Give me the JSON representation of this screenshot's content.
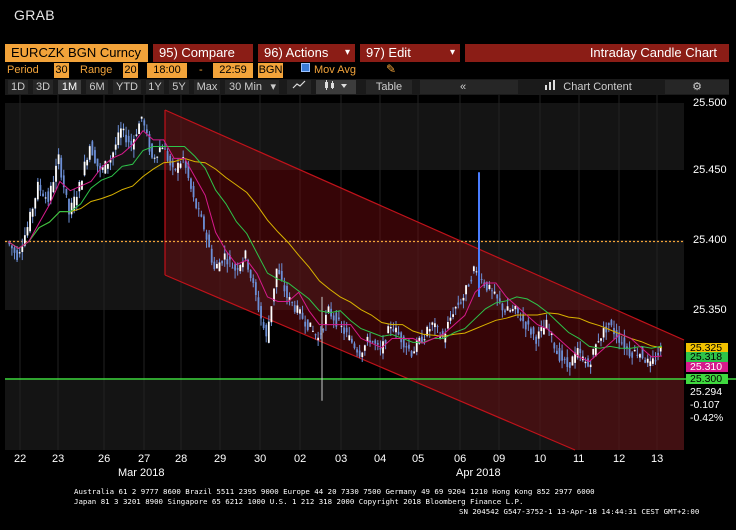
{
  "window": {
    "title": "GRAB"
  },
  "toolbar": {
    "ticker": "EURCZK BGN Curncy",
    "compare": "95) Compare",
    "actions": "96) Actions",
    "edit": "97) Edit",
    "chart_title": "Intraday Candle Chart"
  },
  "settings": {
    "period_label": "Period",
    "period_value": "30",
    "range_label": "Range",
    "range_value": "20",
    "time_start": "18:00",
    "dash": "-",
    "time_end": "22:59",
    "source": "BGN",
    "mov_avg_label": "Mov Avg",
    "mov_avg_checked": true
  },
  "timeframe": {
    "items": [
      "1D",
      "3D",
      "1M",
      "6M",
      "YTD",
      "1Y",
      "5Y",
      "Max"
    ],
    "active": "1M",
    "interval": "30 Min",
    "table_label": "Table",
    "chart_content_label": "Chart Content"
  },
  "icons": {
    "pencil": "pencil-icon",
    "line_chart": "line-chart-icon",
    "candle": "candle-icon",
    "double_left": "double-chevron-left-icon",
    "chart_content": "bar-chart-icon",
    "gear": "gear-icon",
    "caret": "caret-down-icon"
  },
  "chart_data": {
    "type": "candlestick",
    "y_ticks": [
      "25.500",
      "25.450",
      "25.400",
      "25.350",
      "25.300"
    ],
    "ylim": [
      25.265,
      25.51
    ],
    "x_ticks": [
      "22",
      "23",
      "26",
      "27",
      "28",
      "29",
      "30",
      "02",
      "03",
      "04",
      "05",
      "06",
      "09",
      "10",
      "11",
      "12",
      "13"
    ],
    "month_labels": [
      "Mar 2018",
      "Apr 2018"
    ],
    "close_series": [
      25.4,
      25.39,
      25.41,
      25.44,
      25.43,
      25.46,
      25.42,
      25.44,
      25.47,
      25.45,
      25.46,
      25.48,
      25.47,
      25.49,
      25.46,
      25.47,
      25.45,
      25.46,
      25.43,
      25.41,
      25.38,
      25.39,
      25.38,
      25.39,
      25.36,
      25.33,
      25.38,
      25.36,
      25.35,
      25.34,
      25.33,
      25.35,
      25.34,
      25.33,
      25.32,
      25.33,
      25.32,
      25.34,
      25.33,
      25.32,
      25.33,
      25.34,
      25.33,
      25.35,
      25.36,
      25.38,
      25.37,
      25.36,
      25.35,
      25.35,
      25.34,
      25.33,
      25.34,
      25.32,
      25.31,
      25.32,
      25.31,
      25.33,
      25.34,
      25.33,
      25.32,
      25.32,
      25.31,
      25.322
    ],
    "reference_line": 25.4,
    "support_line": 25.3,
    "labels": [
      {
        "value": "25.325",
        "color": "#f2c200"
      },
      {
        "value": "25.318",
        "color": "#2ec44a"
      },
      {
        "value": "25.310",
        "color": "#d61a8c"
      },
      {
        "value": "25.300",
        "color": "#3fd93f"
      },
      {
        "value": "25.294",
        "color": "#000000"
      },
      {
        "value": "-0.107",
        "color": "#000000"
      },
      {
        "value": "-0.42%",
        "color": "#000000"
      }
    ],
    "colors": {
      "candles": "#6c8fd6",
      "mavg_fast": "#d61a8c",
      "mavg_mid": "#2ec44a",
      "mavg_slow": "#d9b200",
      "channel": "#c0121a",
      "reference": "#f2a33a",
      "support": "#3fd93f"
    }
  },
  "footer": {
    "line1": "Australia 61 2 9777 8600 Brazil 5511 2395 9000 Europe 44 20 7330 7500 Germany 49 69 9204 1210 Hong Kong 852 2977 6000",
    "line2": "Japan 81 3 3201 8900        Singapore 65 6212 1000        U.S. 1 212 318 2000             Copyright 2018 Bloomberg Finance L.P.",
    "line3": "SN 204542 G547-3752-1 13-Apr-18 14:44:31 CEST GMT+2:00"
  }
}
